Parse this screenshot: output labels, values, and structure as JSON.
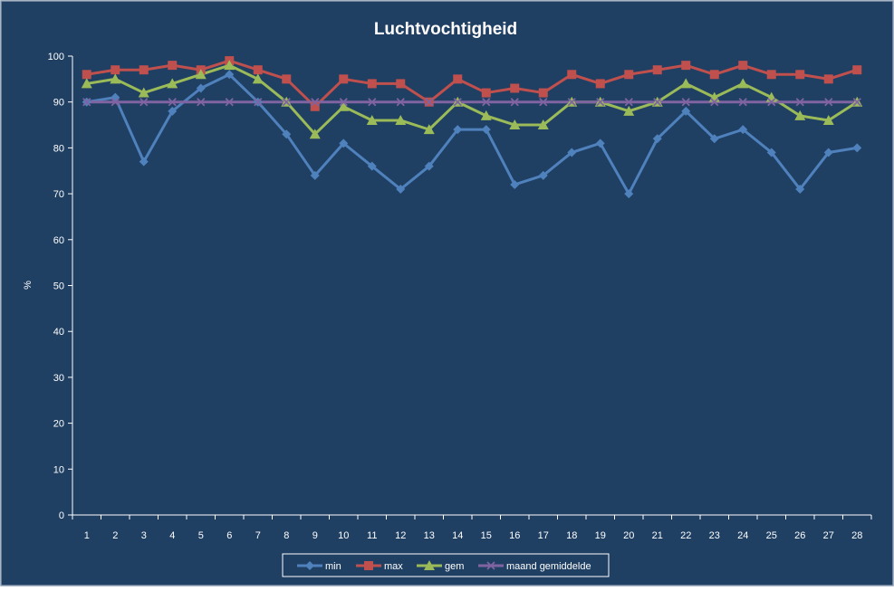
{
  "chart_data": {
    "type": "line",
    "title": "Luchtvochtigheid",
    "xlabel": "",
    "ylabel": "%",
    "ylim": [
      0,
      100
    ],
    "yticks": [
      0,
      10,
      20,
      30,
      40,
      50,
      60,
      70,
      80,
      90,
      100
    ],
    "categories": [
      "1",
      "2",
      "3",
      "4",
      "5",
      "6",
      "7",
      "8",
      "9",
      "10",
      "11",
      "12",
      "13",
      "14",
      "15",
      "16",
      "17",
      "18",
      "19",
      "20",
      "21",
      "22",
      "23",
      "24",
      "25",
      "26",
      "27",
      "28"
    ],
    "grid": false,
    "legend": "bottom",
    "series": [
      {
        "name": "min",
        "color": "#4f81bd",
        "marker": "diamond",
        "values": [
          90,
          91,
          77,
          88,
          93,
          96,
          90,
          83,
          74,
          81,
          76,
          71,
          76,
          84,
          84,
          72,
          74,
          79,
          81,
          70,
          82,
          88,
          82,
          84,
          79,
          71,
          79,
          80
        ]
      },
      {
        "name": "max",
        "color": "#c0504d",
        "marker": "square",
        "values": [
          96,
          97,
          97,
          98,
          97,
          99,
          97,
          95,
          89,
          95,
          94,
          94,
          90,
          95,
          92,
          93,
          92,
          96,
          94,
          96,
          97,
          98,
          96,
          98,
          96,
          96,
          95,
          97
        ]
      },
      {
        "name": "gem",
        "color": "#9bbb59",
        "marker": "triangle",
        "values": [
          94,
          95,
          92,
          94,
          96,
          98,
          95,
          90,
          83,
          89,
          86,
          86,
          84,
          90,
          87,
          85,
          85,
          90,
          90,
          88,
          90,
          94,
          91,
          94,
          91,
          87,
          86,
          90
        ]
      },
      {
        "name": "maand gemiddelde",
        "color": "#8064a2",
        "marker": "x",
        "values": [
          90,
          90,
          90,
          90,
          90,
          90,
          90,
          90,
          90,
          90,
          90,
          90,
          90,
          90,
          90,
          90,
          90,
          90,
          90,
          90,
          90,
          90,
          90,
          90,
          90,
          90,
          90,
          90
        ]
      }
    ]
  }
}
